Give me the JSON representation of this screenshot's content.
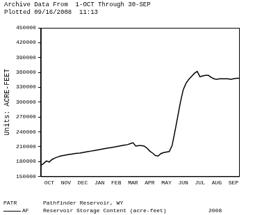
{
  "chart_data": {
    "type": "line",
    "title": "Archive Data From  1-OCT Through 30-SEP",
    "subtitle": "Plotted 09/16/2008  11:13",
    "y_label": "Units: ACRE-FEET",
    "annotations": [
      "PATR",
      "Pathfinder Reservoir, WY",
      "Reservoir Storage Content (acre-feet)",
      "2008"
    ],
    "categories": [
      null,
      null,
      null,
      "OCT",
      null,
      null,
      null,
      null,
      null,
      "NOV",
      null,
      null,
      null,
      null,
      null,
      "DEC",
      null,
      null,
      null,
      null,
      null,
      "JAN",
      null,
      null,
      null,
      null,
      null,
      "FEB",
      null,
      null,
      null,
      null,
      null,
      "MAR",
      null,
      null,
      null,
      null,
      null,
      "APR",
      null,
      null,
      null,
      null,
      null,
      "MAY",
      null,
      null,
      null,
      null,
      null,
      "JUN",
      null,
      null,
      null,
      null,
      null,
      "JUL",
      null,
      null,
      null,
      null,
      null,
      "AUG",
      null,
      null,
      null,
      null,
      null,
      "SEP",
      null,
      null
    ],
    "series": [
      {
        "name": "AF",
        "color": "#000000",
        "line_style": "solid",
        "marker": "none",
        "values": [
          172000,
          176000,
          181000,
          179000,
          184000,
          187000,
          189000,
          191000,
          192000,
          193000,
          194000,
          195000,
          196000,
          196500,
          197000,
          198000,
          199000,
          200000,
          201000,
          202000,
          203000,
          204000,
          205000,
          206000,
          207000,
          208000,
          209000,
          210000,
          211000,
          212000,
          213000,
          214000,
          216000,
          218000,
          211000,
          212000,
          212000,
          211000,
          207000,
          201000,
          197000,
          192000,
          191000,
          196000,
          198000,
          199000,
          200000,
          212000,
          240000,
          270000,
          300000,
          325000,
          338000,
          346000,
          352000,
          358000,
          362000,
          351000,
          353000,
          354000,
          354000,
          350000,
          347000,
          346000,
          347000,
          347000,
          347000,
          347000,
          346000,
          347000,
          348000,
          348000
        ]
      }
    ],
    "ylim": [
      150000,
      450000
    ],
    "yticks": [
      150000,
      180000,
      210000,
      240000,
      270000,
      300000,
      330000,
      360000,
      390000,
      420000,
      450000
    ],
    "grid": false
  }
}
